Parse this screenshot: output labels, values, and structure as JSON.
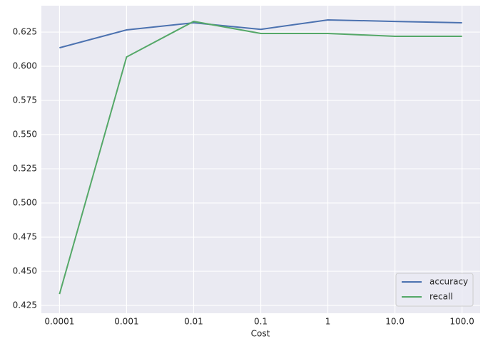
{
  "chart_data": {
    "type": "line",
    "x_label": "Cost",
    "categories": [
      "0.0001",
      "0.001",
      "0.01",
      "0.1",
      "1",
      "10.0",
      "100.0"
    ],
    "series": [
      {
        "name": "accuracy",
        "color": "#4c72b0",
        "values": [
          0.6135,
          0.6266,
          0.6318,
          0.627,
          0.6339,
          0.6328,
          0.6318
        ]
      },
      {
        "name": "recall",
        "color": "#55a868",
        "values": [
          0.4333,
          0.6068,
          0.6328,
          0.624,
          0.624,
          0.6219,
          0.6219
        ]
      }
    ],
    "ylim": [
      0.4193,
      0.6443
    ],
    "yticks": [
      0.425,
      {
        "value": 0.45,
        "label": "0.450"
      },
      0.475,
      {
        "value": 0.5,
        "label": "0.500"
      },
      0.525,
      {
        "value": 0.55,
        "label": "0.550"
      },
      0.575,
      {
        "value": 0.6,
        "label": "0.600"
      },
      0.625
    ],
    "grid": true,
    "legend": "lower right"
  }
}
